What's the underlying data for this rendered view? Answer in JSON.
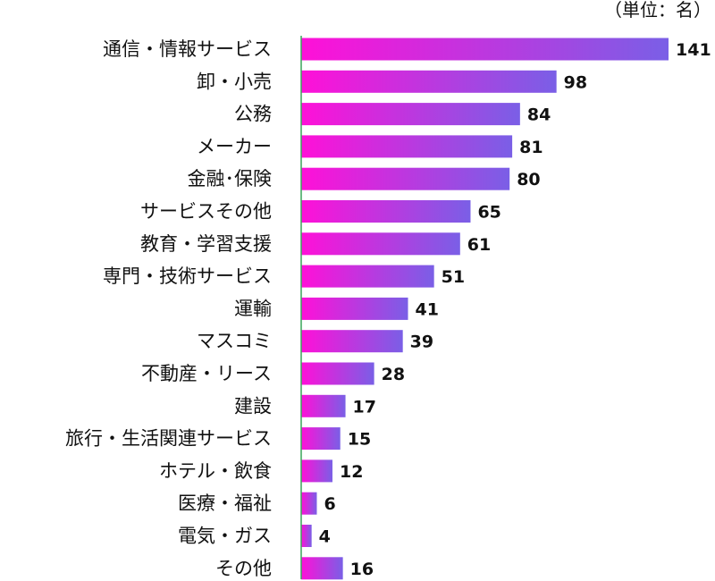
{
  "chart_data": {
    "type": "bar",
    "orientation": "horizontal",
    "unit_note": "（単位：名）",
    "categories": [
      "通信・情報サービス",
      "卸・小売",
      "公務",
      "メーカー",
      "金融･保険",
      "サービスその他",
      "教育・学習支援",
      "専門・技術サービス",
      "運輸",
      "マスコミ",
      "不動産・リース",
      "建設",
      "旅行・生活関連サービス",
      "ホテル・飲食",
      "医療・福祉",
      "電気・ガス",
      "その他"
    ],
    "values": [
      141,
      98,
      84,
      81,
      80,
      65,
      61,
      51,
      41,
      39,
      28,
      17,
      15,
      12,
      6,
      4,
      16
    ],
    "xlim": [
      0,
      141
    ],
    "grid": false,
    "legend": "none",
    "colors": {
      "gradient_start": "#ff10d8",
      "gradient_end": "#7a5fe6",
      "axis": "#3aa55a",
      "text": "#111111"
    }
  }
}
